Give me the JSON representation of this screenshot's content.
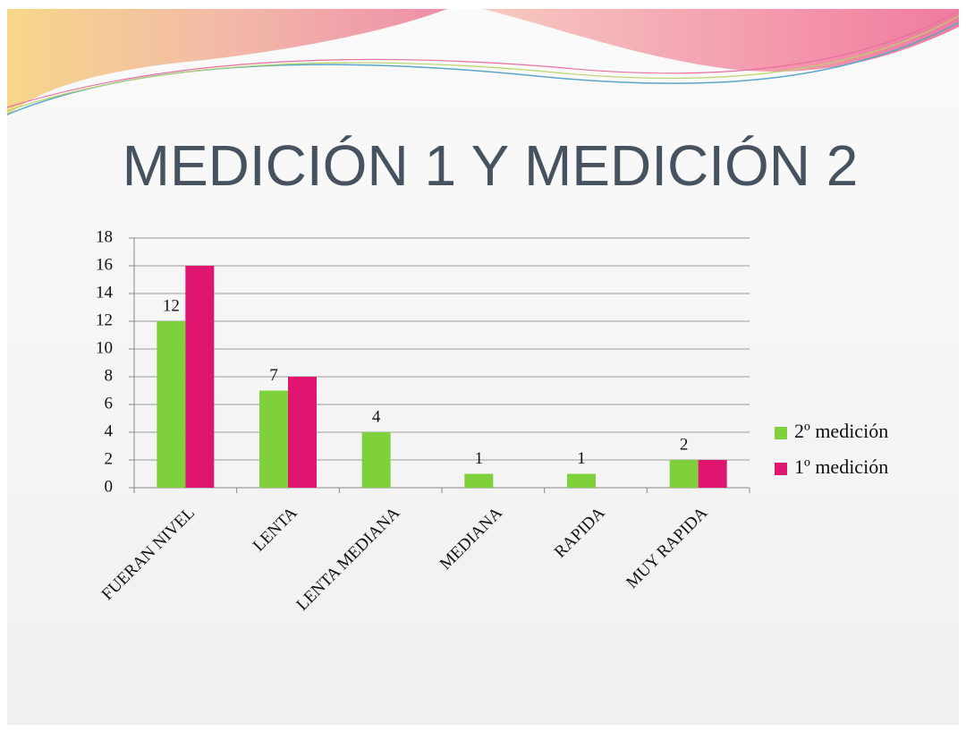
{
  "chart_data": {
    "type": "bar",
    "title": "MEDICIÓN 1 Y MEDICIÓN 2",
    "categories": [
      "FUERAN NIVEL",
      "LENTA",
      "LENTA MEDIANA",
      "MEDIANA",
      "RAPIDA",
      "MUY RAPIDA"
    ],
    "series": [
      {
        "name": "2º medición",
        "color": "#7ed13a",
        "values": [
          12,
          7,
          4,
          1,
          1,
          2
        ],
        "show_labels": true
      },
      {
        "name": "1º medición",
        "color": "#e0156f",
        "values": [
          16,
          8,
          null,
          null,
          null,
          2
        ],
        "show_labels": false
      }
    ],
    "ylim": [
      0,
      18
    ],
    "yticks": [
      0,
      2,
      4,
      6,
      8,
      10,
      12,
      14,
      16,
      18
    ],
    "grid": true,
    "legend": "right"
  }
}
